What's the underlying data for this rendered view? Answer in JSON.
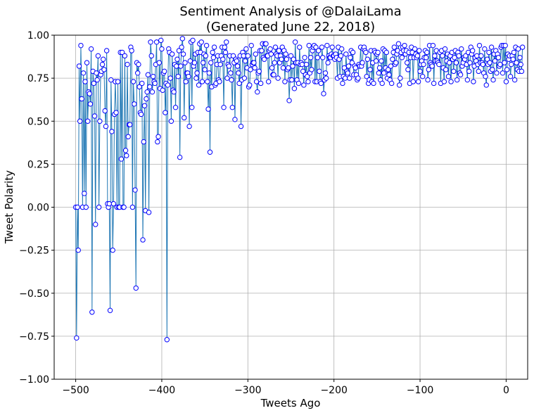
{
  "chart_data": {
    "type": "line",
    "title_line1": "Sentiment Analysis of @DalaiLama",
    "title_line2": "(Generated June 22, 2018)",
    "xlabel": "Tweets Ago",
    "ylabel": "Tweet Polarity",
    "xlim": [
      -525,
      25
    ],
    "ylim": [
      -1.0,
      1.0
    ],
    "xticks": [
      -500,
      -400,
      -300,
      -200,
      -100,
      0
    ],
    "xtick_labels": [
      "−500",
      "−400",
      "−300",
      "−200",
      "−100",
      "0"
    ],
    "yticks": [
      -1.0,
      -0.75,
      -0.5,
      -0.25,
      0.0,
      0.25,
      0.5,
      0.75,
      1.0
    ],
    "ytick_labels": [
      "−1.00",
      "−0.75",
      "−0.50",
      "−0.25",
      "0.00",
      "0.25",
      "0.50",
      "0.75",
      "1.00"
    ],
    "grid": true,
    "line_color": "#1f77b4",
    "marker_edge_color": "#0000ff",
    "marker_face_color": "#ffffff",
    "series": [
      {
        "x_start": -500,
        "x_step": 1,
        "values": [
          0,
          -0.76,
          0,
          -0.25,
          0.82,
          0.5,
          0.94,
          0.63,
          0,
          0.78,
          0.08,
          0.73,
          0,
          0.84,
          0.5,
          0.67,
          0.66,
          0.6,
          0.92,
          -0.61,
          0.79,
          0.72,
          0.53,
          -0.1,
          0.78,
          0.74,
          0.88,
          0,
          0.5,
          0.77,
          0.79,
          0.83,
          0.86,
          0.8,
          0.56,
          0.47,
          0.91,
          0.02,
          0,
          0.02,
          -0.6,
          0.74,
          0.44,
          -0.25,
          0.02,
          0.54,
          0.73,
          0.55,
          0,
          0.73,
          0,
          0,
          0.9,
          0.28,
          0.9,
          0,
          0,
          0.88,
          0.33,
          0.3,
          0.83,
          0.41,
          0.48,
          0.48,
          0.93,
          0.91,
          0,
          0.73,
          0.6,
          0.1,
          -0.47,
          0.84,
          0.78,
          0.83,
          0.7,
          0.55,
          0.54,
          0.72,
          -0.19,
          0.38,
          0.59,
          -0.02,
          0.63,
          0.67,
          0.77,
          -0.03,
          0.7,
          0.96,
          0.88,
          0.67,
          0.76,
          0.73,
          0.72,
          0.83,
          0.96,
          0.38,
          0.41,
          0.84,
          0.69,
          0.97,
          0.92,
          0.68,
          0.78,
          0.79,
          0.55,
          0.72,
          -0.77,
          0.71,
          0.92,
          0.9,
          0.75,
          0.5,
          0.89,
          0.68,
          0.67,
          0.83,
          0.58,
          0.82,
          0.86,
          0.76,
          0.91,
          0.29,
          0.82,
          0.93,
          0.98,
          0.89,
          0.52,
          0.84,
          0.73,
          0.78,
          0.78,
          0.76,
          0.47,
          0.85,
          0.96,
          0.58,
          0.97,
          0.82,
          0.84,
          0.89,
          0.75,
          0.78,
          0.9,
          0.71,
          0.95,
          0.9,
          0.96,
          0.73,
          0.84,
          0.89,
          0.8,
          0.88,
          0.94,
          0.73,
          0.57,
          0.78,
          0.32,
          0.84,
          0.7,
          0.9,
          0.87,
          0.93,
          0.71,
          0.72,
          0.83,
          0.88,
          0.74,
          0.73,
          0.83,
          0.88,
          0.93,
          0.86,
          0.58,
          0.93,
          0.9,
          0.96,
          0.75,
          0.83,
          0.82,
          0.88,
          0.78,
          0.74,
          0.58,
          0.88,
          0.84,
          0.51,
          0.86,
          0.85,
          0.82,
          0.78,
          0.72,
          0.88,
          0.47,
          0.74,
          0.9,
          0.88,
          0.75,
          0.85,
          0.92,
          0.81,
          0.88,
          0.7,
          0.71,
          0.8,
          0.94,
          0.83,
          0.84,
          0.84,
          0.81,
          0.89,
          0.73,
          0.67,
          0.78,
          0.79,
          0.91,
          0.72,
          0.91,
          0.95,
          0.87,
          0.86,
          0.95,
          0.95,
          0.88,
          0.88,
          0.73,
          0.91,
          0.92,
          0.89,
          0.81,
          0.77,
          0.77,
          0.84,
          0.93,
          0.89,
          0.88,
          0.75,
          0.91,
          0.84,
          0.88,
          0.86,
          0.93,
          0.81,
          0.91,
          0.73,
          0.89,
          0.86,
          0.8,
          0.81,
          0.62,
          0.74,
          0.88,
          0.74,
          0.82,
          0.86,
          0.69,
          0.96,
          0.84,
          0.74,
          0.84,
          0.72,
          0.93,
          0.83,
          0.84,
          0.83,
          0.79,
          0.71,
          0.87,
          0.77,
          0.83,
          0.76,
          0.73,
          0.94,
          0.78,
          0.87,
          0.8,
          0.91,
          0.93,
          0.94,
          0.73,
          0.93,
          0.73,
          0.87,
          0.91,
          0.79,
          0.73,
          0.72,
          0.93,
          0.87,
          0.66,
          0.74,
          0.78,
          0.75,
          0.94,
          0.84,
          0.88,
          0.87,
          0.87,
          0.89,
          0.93,
          0.88,
          0.88,
          0.86,
          0.89,
          0.87,
          0.75,
          0.93,
          0.86,
          0.76,
          0.88,
          0.92,
          0.72,
          0.76,
          0.81,
          0.75,
          0.89,
          0.79,
          0.78,
          0.82,
          0.75,
          0.87,
          0.91,
          0.84,
          0.9,
          0.77,
          0.82,
          0.81,
          0.77,
          0.74,
          0.75,
          0.83,
          0.82,
          0.93,
          0.82,
          0.84,
          0.92,
          0.93,
          0.91,
          0.9,
          0.76,
          0.86,
          0.72,
          0.74,
          0.8,
          0.91,
          0.73,
          0.84,
          0.72,
          0.91,
          0.9,
          0.85,
          0.89,
          0.9,
          0.78,
          0.81,
          0.74,
          0.85,
          0.72,
          0.92,
          0.78,
          0.91,
          0.81,
          0.9,
          0.75,
          0.8,
          0.77,
          0.74,
          0.82,
          0.72,
          0.86,
          0.9,
          0.93,
          0.83,
          0.84,
          0.89,
          0.91,
          0.95,
          0.71,
          0.75,
          0.9,
          0.87,
          0.93,
          0.91,
          0.94,
          0.89,
          0.91,
          0.84,
          0.8,
          0.9,
          0.72,
          0.87,
          0.93,
          0.9,
          0.73,
          0.87,
          0.92,
          0.89,
          0.87,
          0.88,
          0.73,
          0.91,
          0.79,
          0.83,
          0.85,
          0.76,
          0.83,
          0.87,
          0.91,
          0.87,
          0.9,
          0.74,
          0.8,
          0.94,
          0.84,
          0.83,
          0.82,
          0.94,
          0.72,
          0.88,
          0.85,
          0.91,
          0.85,
          0.84,
          0.83,
          0.9,
          0.72,
          0.91,
          0.88,
          0.81,
          0.73,
          0.92,
          0.8,
          0.85,
          0.89,
          0.76,
          0.84,
          0.88,
          0.73,
          0.9,
          0.86,
          0.79,
          0.87,
          0.91,
          0.84,
          0.74,
          0.9,
          0.88,
          0.78,
          0.77,
          0.92,
          0.82,
          0.84,
          0.87,
          0.86,
          0.88,
          0.83,
          0.74,
          0.9,
          0.79,
          0.84,
          0.93,
          0.89,
          0.91,
          0.73,
          0.82,
          0.87,
          0.85,
          0.88,
          0.83,
          0.79,
          0.94,
          0.84,
          0.88,
          0.84,
          0.83,
          0.78,
          0.92,
          0.76,
          0.71,
          0.86,
          0.83,
          0.9,
          0.84,
          0.79,
          0.93,
          0.8,
          0.74,
          0.89,
          0.85,
          0.91,
          0.78,
          0.89,
          0.87,
          0.82,
          0.83,
          0.93,
          0.94,
          0.78,
          0.94,
          0.84,
          0.94,
          0.73,
          0.8,
          0.89,
          0.86,
          0.88,
          0.76,
          0.83,
          0.88,
          0.86,
          0.9,
          0.74,
          0.93,
          0.84,
          0.8,
          0.92,
          0.79,
          0.87,
          0.83,
          0.79,
          0.93
        ]
      }
    ]
  }
}
